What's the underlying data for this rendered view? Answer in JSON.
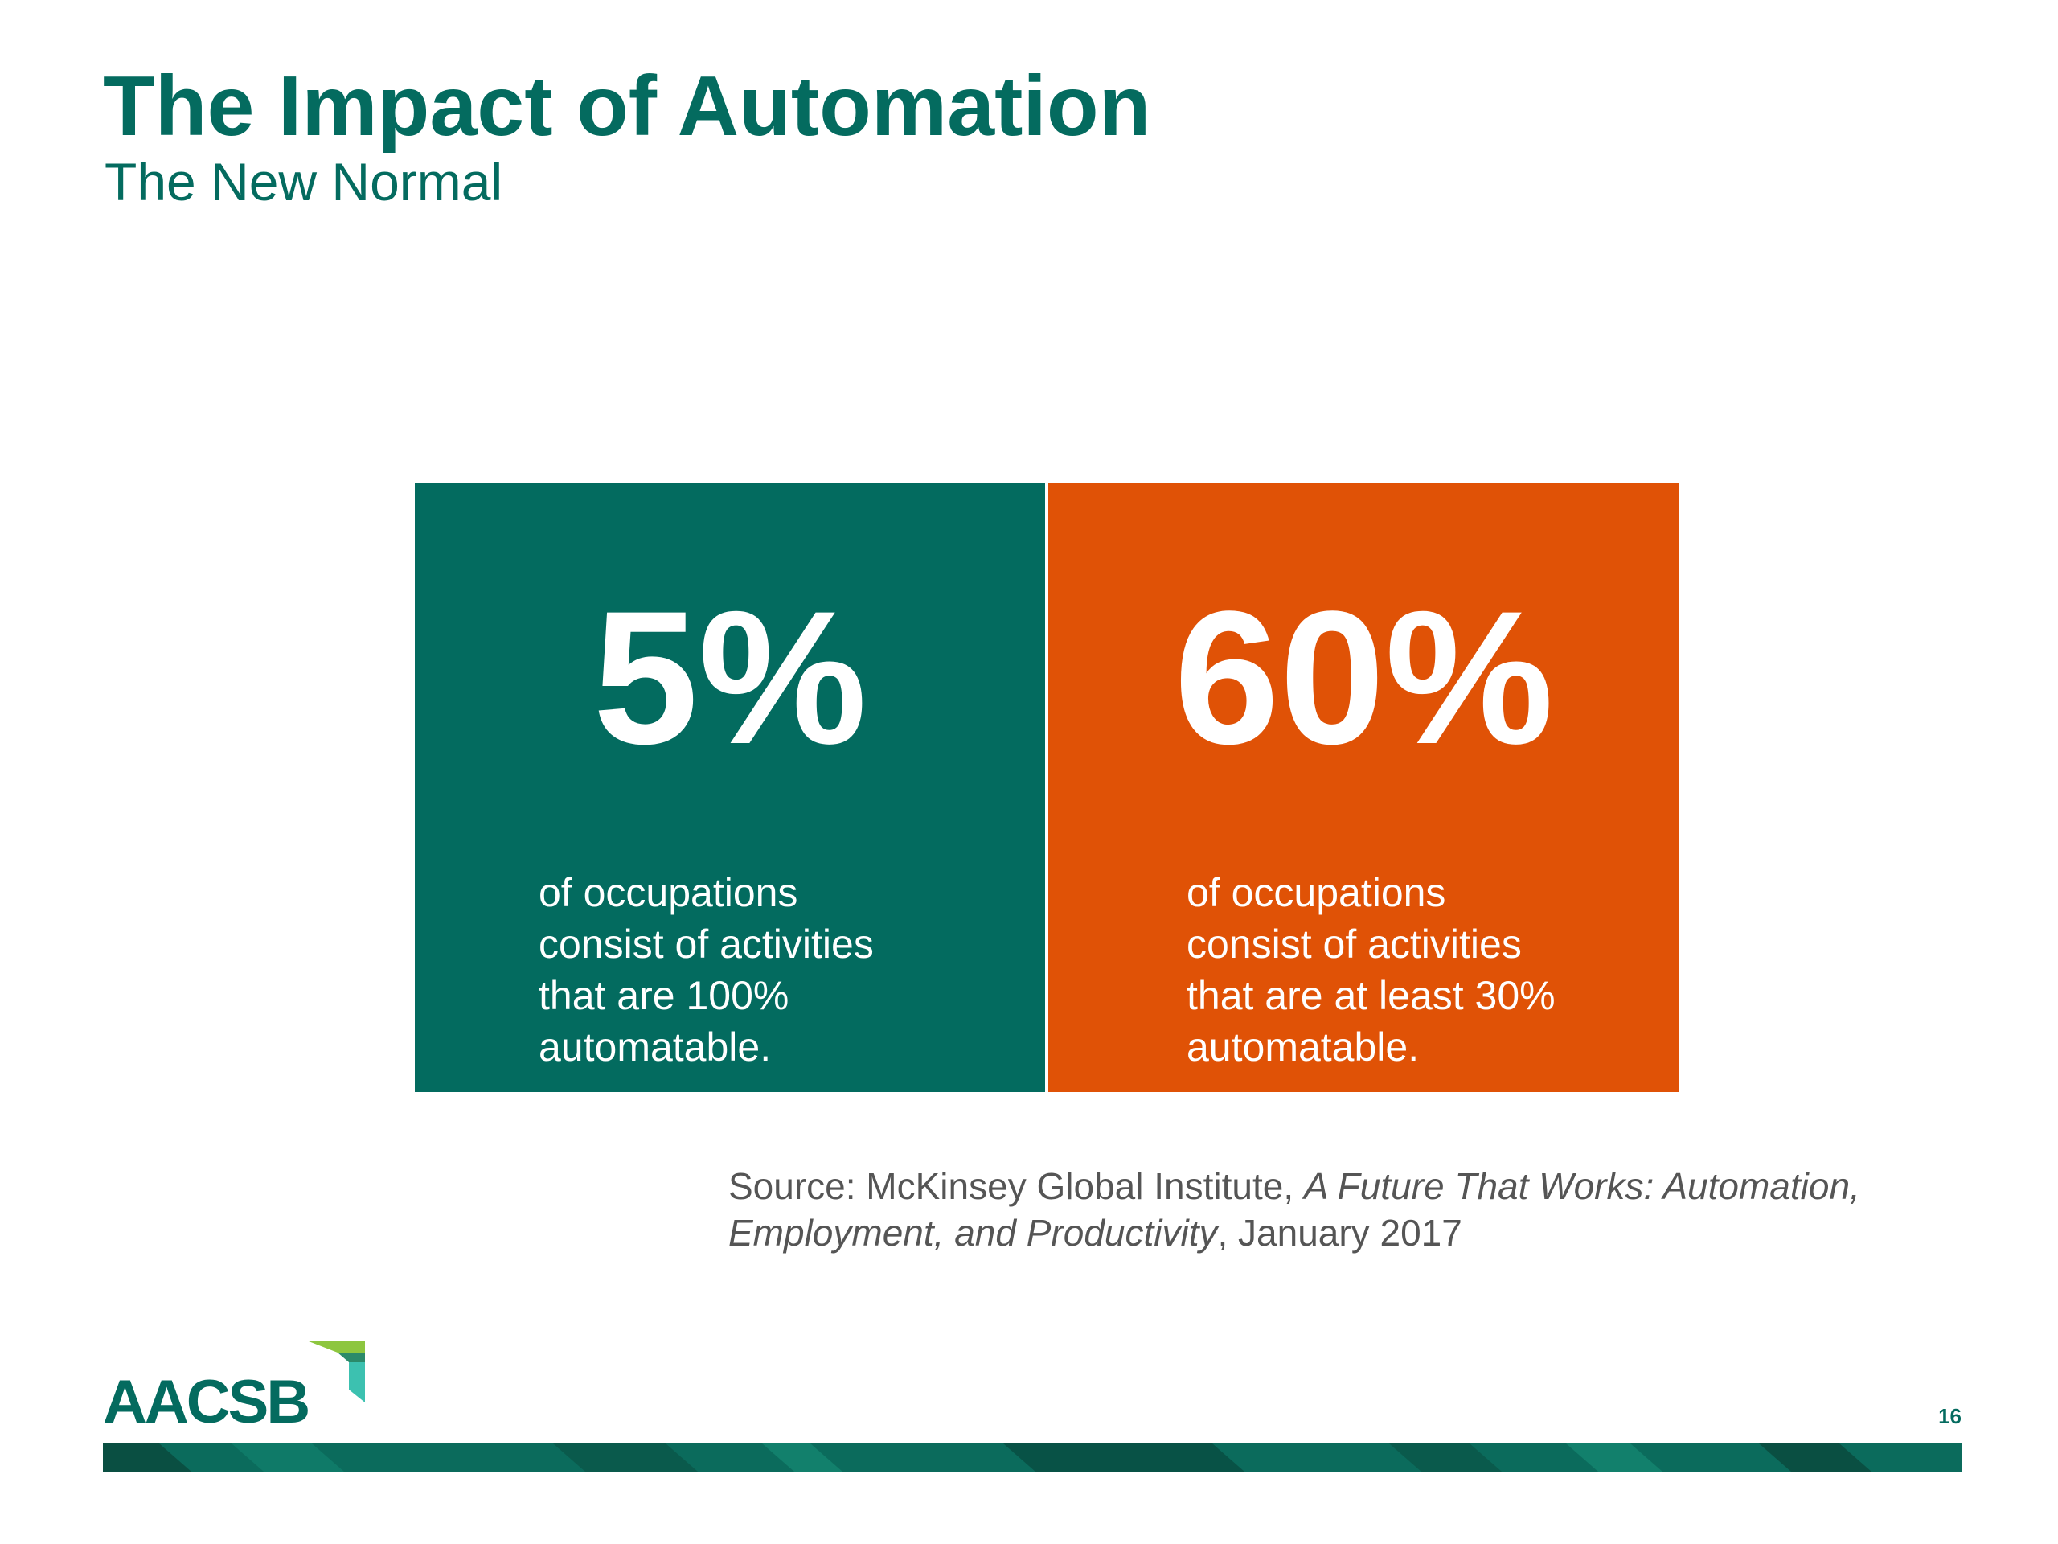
{
  "slide": {
    "title": "The Impact of Automation",
    "subtitle": "The New Normal",
    "page_number": "16"
  },
  "stats": [
    {
      "value": "5%",
      "description_lines": [
        "of occupations",
        "consist of activities",
        "that are 100%",
        "automatable."
      ],
      "color": "#036b5f"
    },
    {
      "value": "60%",
      "description_lines": [
        "of occupations",
        "consist of activities",
        "that are at least 30%",
        "automatable."
      ],
      "color": "#e05206"
    }
  ],
  "source": {
    "prefix": "Source: McKinsey Global Institute, ",
    "title_part1": "A Future That Works: Automation,",
    "title_part2": "Employment, and Productivity",
    "suffix": ", January 2017"
  },
  "logo": {
    "text": "AACSB"
  },
  "colors": {
    "brand_green": "#046b5f",
    "accent_orange": "#e05206",
    "logo_lime": "#8dc63f",
    "logo_teal": "#3cc1b0"
  }
}
